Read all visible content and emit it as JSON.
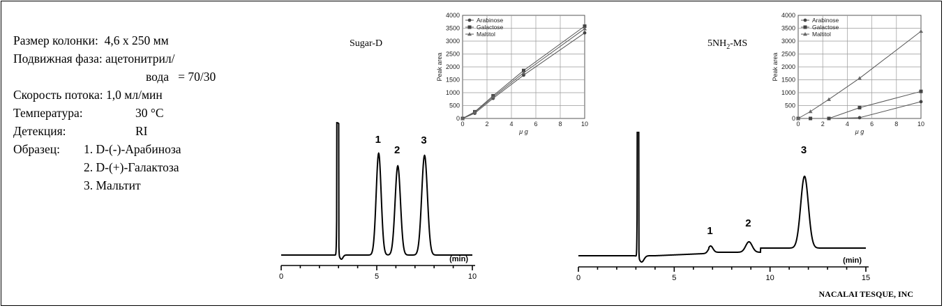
{
  "conditions": {
    "column_size_label": "Размер колонки:",
    "column_size_value": "4,6 х 250 мм",
    "mobile_phase_label": "Подвижная фаза:",
    "mobile_phase_value": "ацетонитрил/",
    "mobile_phase_value2": "вода   = 70/30",
    "flow_rate_label": "Скорость потока:",
    "flow_rate_value": "1,0 мл/мин",
    "temperature_label": "Температура:",
    "temperature_value": "30 °C",
    "detection_label": "Детекция:",
    "detection_value": "RI",
    "sample_label": "Образец:",
    "sample_1": "1. D-(-)-Арабиноза",
    "sample_2": "2. D-(+)-Галактоза",
    "sample_3": "3. Мальтит"
  },
  "credit": "NACALAI TESQUE, INC",
  "colors": {
    "line": "#000000",
    "inset_line": "#555555"
  },
  "chart_data": [
    {
      "type": "line",
      "title": "Sugar-D",
      "xlabel": "(min)",
      "xlim": [
        0,
        10
      ],
      "xticks": [
        "0",
        "5",
        "10"
      ],
      "peaks": [
        {
          "label": "1",
          "time": 5.1
        },
        {
          "label": "2",
          "time": 6.1
        },
        {
          "label": "3",
          "time": 7.5
        }
      ],
      "solvent_peak_time": 2.95
    },
    {
      "type": "line",
      "title_main": "5NH",
      "title_sub": "2",
      "title_tail": "-MS",
      "xlabel": "(min)",
      "xlim": [
        0,
        15
      ],
      "xticks": [
        "0",
        "5",
        "10",
        "15"
      ],
      "peaks": [
        {
          "label": "1",
          "time": 6.9
        },
        {
          "label": "2",
          "time": 8.9
        },
        {
          "label": "3",
          "time": 11.8
        }
      ],
      "solvent_peak_time": 3.1
    },
    {
      "type": "line",
      "xlabel": "μ g",
      "ylabel": "Peak area",
      "xlim": [
        0,
        10
      ],
      "ylim": [
        0,
        4000
      ],
      "xticks": [
        "0",
        "2",
        "4",
        "6",
        "8",
        "10"
      ],
      "yticks": [
        "0",
        "500",
        "1000",
        "1500",
        "2000",
        "2500",
        "3000",
        "3500",
        "4000"
      ],
      "series": [
        {
          "name": "Arabinose",
          "marker": "circle",
          "x": [
            0,
            1,
            2.5,
            5,
            10
          ],
          "y": [
            0,
            200,
            780,
            1680,
            3320
          ]
        },
        {
          "name": "Galactose",
          "marker": "square",
          "x": [
            0,
            1,
            2.5,
            5,
            10
          ],
          "y": [
            0,
            260,
            880,
            1860,
            3580
          ]
        },
        {
          "name": "Maltitol",
          "marker": "triangle",
          "x": [
            0,
            1,
            2.5,
            5,
            10
          ],
          "y": [
            0,
            240,
            830,
            1770,
            3480
          ]
        }
      ]
    },
    {
      "type": "line",
      "xlabel": "μ g",
      "ylabel": "Peak area",
      "xlim": [
        0,
        10
      ],
      "ylim": [
        0,
        4000
      ],
      "xticks": [
        "0",
        "2",
        "4",
        "6",
        "8",
        "10"
      ],
      "yticks": [
        "0",
        "500",
        "1000",
        "1500",
        "2000",
        "2500",
        "3000",
        "3500",
        "4000"
      ],
      "series": [
        {
          "name": "Arabinose",
          "marker": "circle",
          "x": [
            0,
            1,
            2.5,
            5,
            10
          ],
          "y": [
            0,
            0,
            0,
            30,
            650
          ]
        },
        {
          "name": "Galactose",
          "marker": "square",
          "x": [
            0,
            1,
            2.5,
            5,
            10
          ],
          "y": [
            0,
            0,
            0,
            420,
            1050
          ]
        },
        {
          "name": "Maltitol",
          "marker": "triangle",
          "x": [
            0,
            1,
            2.5,
            5,
            10
          ],
          "y": [
            0,
            270,
            740,
            1560,
            3380
          ]
        }
      ]
    }
  ]
}
